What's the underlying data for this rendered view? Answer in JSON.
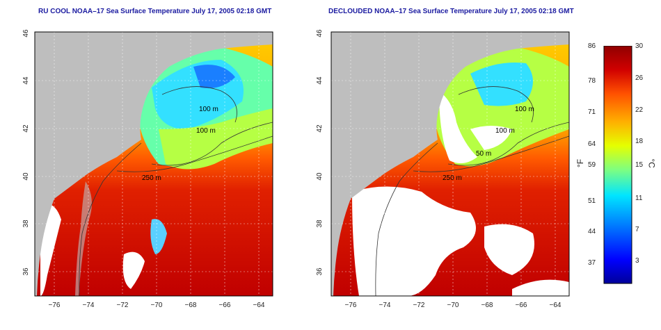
{
  "panels": [
    {
      "id": "raw",
      "title": "RU COOL NOAA–17 Sea Surface Temperature July 17, 2005 02:18 GMT"
    },
    {
      "id": "declouded",
      "title": "DECLOUDED NOAA–17 Sea Surface Temperature July 17, 2005 02:18 GMT"
    }
  ],
  "axes": {
    "lon_ticks": [
      "−76",
      "−74",
      "−72",
      "−70",
      "−68",
      "−66",
      "−64"
    ],
    "lat_ticks": [
      "36",
      "38",
      "40",
      "42",
      "44",
      "46"
    ],
    "lon_range": [
      -77,
      -63
    ],
    "lat_range": [
      35,
      46
    ],
    "grid": true
  },
  "contour_labels": [
    "100 m",
    "100 m",
    "250 m",
    "50 m",
    "250 m"
  ],
  "colorbar": {
    "fahrenheit_unit": "°F",
    "celsius_unit": "°C",
    "fahrenheit_ticks": [
      "86",
      "78",
      "71",
      "64",
      "59",
      "51",
      "44",
      "37"
    ],
    "celsius_ticks": [
      "30",
      "26",
      "22",
      "18",
      "15",
      "11",
      "7",
      "3"
    ],
    "celsius_range": [
      0,
      30
    ],
    "colors": [
      "#00009a",
      "#0000ff",
      "#0080ff",
      "#00e5ff",
      "#7fff7f",
      "#e5ff00",
      "#ffb000",
      "#ff5000",
      "#d00000",
      "#900000"
    ]
  },
  "colors": {
    "land": "#bebebe",
    "cloud_mask": "#ffffff",
    "title": "#1a1aa0"
  }
}
